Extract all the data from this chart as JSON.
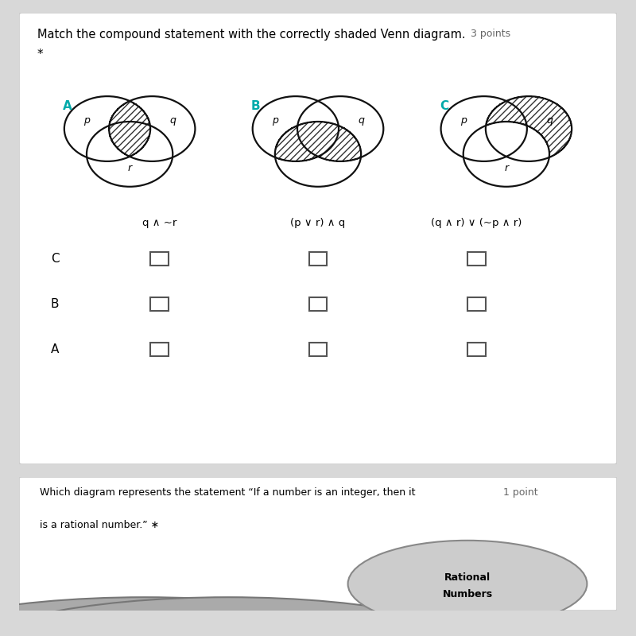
{
  "title": "Match the compound statement with the correctly shaded Venn diagram.",
  "title_points": "3 points",
  "star": "*",
  "bg_color": "#d8d8d8",
  "diagram_labels": [
    "A",
    "B",
    "C"
  ],
  "diagram_label_color": "#00aaaa",
  "circle_labels_A": [
    "p",
    "q",
    "r"
  ],
  "circle_labels_B": [
    "p",
    "q",
    ""
  ],
  "circle_labels_C": [
    "p",
    "q",
    "r"
  ],
  "expressions": [
    "q ∧ ~r",
    "(p ∨ r) ∧ q",
    "(q ∧ r) ∨ (~p ∧ r)"
  ],
  "row_labels": [
    "C",
    "B",
    "A"
  ],
  "hatch_color": "#333333",
  "circle_color": "#111111",
  "bottom_text1": "Which diagram represents the statement “If a number is an integer, then it",
  "bottom_text2": "is a rational number.” ∗",
  "bottom_points": "1 point",
  "shade_A": [
    "pq_only",
    "pqr"
  ],
  "shade_B": [
    "qr_only",
    "pqr",
    "pr_only"
  ],
  "shade_C": [
    "pq_only",
    "q_only"
  ]
}
